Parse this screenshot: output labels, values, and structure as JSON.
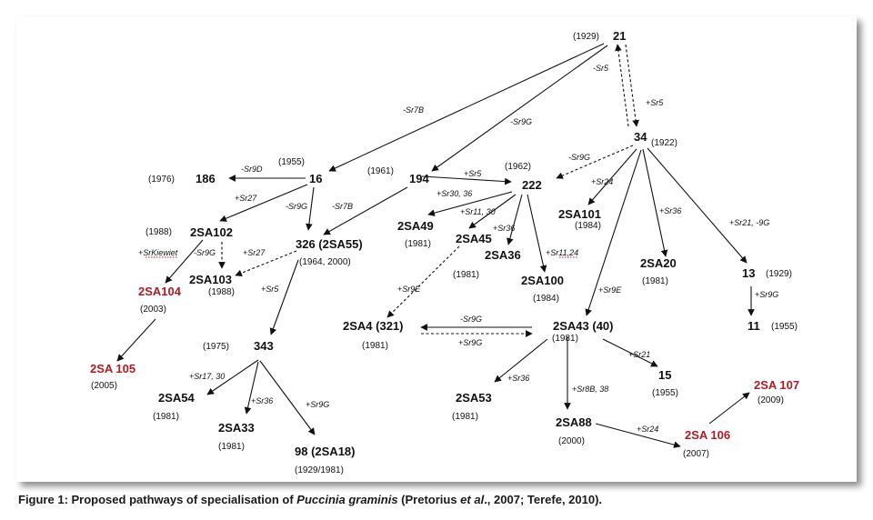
{
  "figure": {
    "caption_prefix": "Figure 1: Proposed pathways of specialisation of ",
    "caption_species": "Puccinia graminis",
    "caption_mid": " (Pretorius ",
    "caption_etal": "et al",
    "caption_suffix": "., 2007; Terefe, 2010)."
  },
  "colors": {
    "text": "#111111",
    "highlight": "#b01c24"
  },
  "nodes": {
    "n21": {
      "name": "21",
      "year": "(1929)"
    },
    "n34": {
      "name": "34",
      "year": "(1922)"
    },
    "n16": {
      "name": "16",
      "year": "(1955)"
    },
    "n186": {
      "name": "186",
      "year": "(1976)"
    },
    "n194": {
      "name": "194",
      "year": "(1961)"
    },
    "n222": {
      "name": "222",
      "year": "(1962)"
    },
    "n2SA102": {
      "name": "2SA102",
      "year": "(1988)"
    },
    "n326": {
      "name": "326 (2SA55)",
      "year": "(1964,  2000)"
    },
    "n2SA103": {
      "name": "2SA103",
      "year": "(1988)"
    },
    "n2SA104": {
      "name": "2SA104",
      "year": "(2003)"
    },
    "n2SA105": {
      "name": "2SA 105",
      "year": "(2005)"
    },
    "n343": {
      "name": "343",
      "year": "(1975)"
    },
    "n2SA54": {
      "name": "2SA54",
      "year": "(1981)"
    },
    "n2SA33": {
      "name": "2SA33",
      "year": "(1981)"
    },
    "n98": {
      "name": "98 (2SA18)",
      "year": "(1929/1981)"
    },
    "n2SA49": {
      "name": "2SA49",
      "year": "(1981)"
    },
    "n2SA45": {
      "name": "2SA45",
      "year": "(1981)"
    },
    "n2SA36": {
      "name": "2SA36",
      "year": ""
    },
    "n2SA100": {
      "name": "2SA100",
      "year": "(1984)"
    },
    "n2SA101": {
      "name": "2SA101",
      "year": "(1984)"
    },
    "n2SA20": {
      "name": "2SA20",
      "year": "(1981)"
    },
    "n13": {
      "name": "13",
      "year": "(1929)"
    },
    "n11": {
      "name": "11",
      "year": "(1955)"
    },
    "n2SA4": {
      "name": "2SA4 (321)",
      "year": "(1981)"
    },
    "n2SA43": {
      "name": "2SA43 (40)",
      "year": "(1981)"
    },
    "n2SA53": {
      "name": "2SA53",
      "year": "(1981)"
    },
    "n15": {
      "name": "15",
      "year": "(1955)"
    },
    "n2SA88": {
      "name": "2SA88",
      "year": "(2000)"
    },
    "n2SA106": {
      "name": "2SA 106",
      "year": "(2007)"
    },
    "n2SA107": {
      "name": "2SA 107",
      "year": "(2009)"
    }
  },
  "edge_labels": {
    "e21_34_minus": "-Sr5",
    "e21_34_plus": "+Sr5",
    "e21_16": "-Sr7B",
    "e21_194": "-Sr9G",
    "e34_222": "-Sr9G",
    "e34_2SA101": "+Sr24",
    "e34_2SA20": "+Sr36",
    "e34_13": "+Sr21, -9G",
    "e34_2SA43": "+Sr9E",
    "e16_186": "-Sr9D",
    "e16_2SA102": "+Sr27",
    "e16_326": "-Sr9G",
    "e194_326": "-Sr7B",
    "e194_222": "+Sr5",
    "e222_2SA49": "+Sr30, 36",
    "e222_2SA45": "+Sr11, 30",
    "e222_2SA36": "+Sr36",
    "e222_2SA100": "+Sr11,24",
    "e2SA102_2SA104": "+SrKiewiet",
    "e2SA102_2SA103": "-Sr9G",
    "e326_2SA103": "+Sr27",
    "e326_343": "+Sr5",
    "e343_2SA54": "+Sr17, 30",
    "e343_2SA33": "+Sr36",
    "e343_98": "+Sr9G",
    "e2SA45_2SA4": "+Sr9E",
    "e2SA43_2SA4": "-Sr9G",
    "e2SA4_2SA43": "+Sr9G",
    "e2SA43_2SA53": "+Sr36",
    "e2SA43_15": "+Sr21",
    "e2SA43_2SA88": "+Sr8B, 38",
    "e2SA88_2SA106": "+Sr24",
    "e13_11": "+Sr9G"
  }
}
